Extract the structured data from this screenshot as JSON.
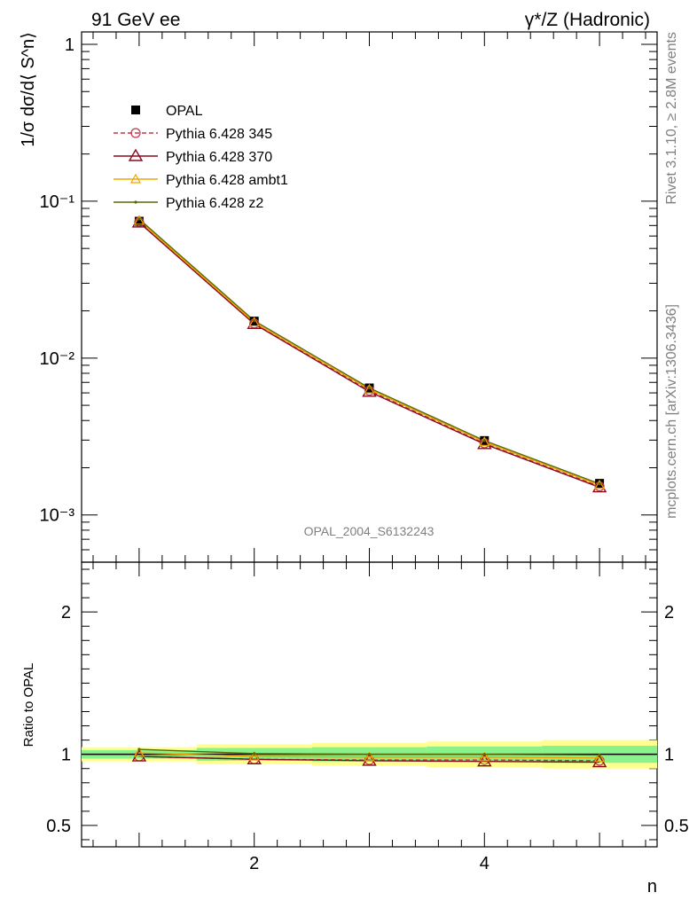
{
  "header": {
    "left": "91 GeV ee",
    "right": "γ*/Z (Hadronic)"
  },
  "side": {
    "rivet": "Rivet 3.1.10, ≥ 2.8M events",
    "mcplots": "mcplots.cern.ch [arXiv:1306.3436]"
  },
  "watermark": "OPAL_2004_S6132243",
  "colors": {
    "opal": "#000000",
    "p345": "#c0394b",
    "p370": "#8b0a1a",
    "ambt1": "#f0a500",
    "z2": "#5a6a00",
    "band_inner": "#8af28a",
    "band_outer": "#ffff90"
  },
  "chart_data": [
    {
      "type": "line",
      "panel": "main",
      "ylabel": "1/σ dσ/d⟨ S^n⟩",
      "yscale": "log",
      "ylim": [
        0.0005,
        1.2
      ],
      "xlim": [
        0.5,
        5.5
      ],
      "y_ticklabels": [
        "1",
        "10⁻¹",
        "10⁻²",
        "10⁻³"
      ],
      "y_tickvalues": [
        1,
        0.1,
        0.01,
        0.001
      ],
      "x": [
        1,
        2,
        3,
        4,
        5
      ],
      "legend_position": "top-left",
      "series": [
        {
          "name": "OPAL",
          "values": [
            0.0745,
            0.0172,
            0.00645,
            0.00298,
            0.00159
          ],
          "marker": "square"
        },
        {
          "name": "Pythia 6.428 345",
          "values": [
            0.0735,
            0.0166,
            0.0062,
            0.00286,
            0.00152
          ],
          "marker": "circle",
          "dashed": true
        },
        {
          "name": "Pythia 6.428 370",
          "values": [
            0.0732,
            0.0165,
            0.0061,
            0.00283,
            0.0015
          ],
          "marker": "triangle"
        },
        {
          "name": "Pythia 6.428 ambt1",
          "values": [
            0.0752,
            0.0169,
            0.00632,
            0.00292,
            0.00155
          ],
          "marker": "triangle-small"
        },
        {
          "name": "Pythia 6.428 z2",
          "values": [
            0.077,
            0.0173,
            0.00645,
            0.00298,
            0.00158
          ],
          "marker": "dot"
        }
      ]
    },
    {
      "type": "line",
      "panel": "ratio",
      "ylabel": "Ratio to OPAL",
      "xlabel": "n",
      "ylim": [
        0.35,
        2.35
      ],
      "xlim": [
        0.5,
        5.5
      ],
      "y_ticklabels": [
        "0.5",
        "1",
        "2"
      ],
      "y_tickvalues": [
        0.5,
        1,
        2
      ],
      "x_ticklabels": [
        "2",
        "4"
      ],
      "x_tickvalues": [
        2,
        4
      ],
      "x": [
        1,
        2,
        3,
        4,
        5
      ],
      "band_edges": [
        0.5,
        1.5,
        2.5,
        3.5,
        4.5,
        5.5
      ],
      "band_inner": [
        [
          0.97,
          1.03
        ],
        [
          0.955,
          1.045
        ],
        [
          0.95,
          1.05
        ],
        [
          0.945,
          1.055
        ],
        [
          0.94,
          1.06
        ]
      ],
      "band_outer": [
        [
          0.95,
          1.05
        ],
        [
          0.93,
          1.07
        ],
        [
          0.92,
          1.08
        ],
        [
          0.91,
          1.09
        ],
        [
          0.9,
          1.1
        ]
      ],
      "series": [
        {
          "name": "Pythia 6.428 345",
          "values": [
            0.985,
            0.965,
            0.96,
            0.96,
            0.955
          ]
        },
        {
          "name": "Pythia 6.428 370",
          "values": [
            0.985,
            0.965,
            0.955,
            0.95,
            0.945
          ]
        },
        {
          "name": "Pythia 6.428 ambt1",
          "values": [
            1.01,
            0.985,
            0.98,
            0.98,
            0.975
          ]
        },
        {
          "name": "Pythia 6.428 z2",
          "values": [
            1.035,
            1.005,
            1.0,
            1.0,
            0.995
          ]
        }
      ]
    }
  ]
}
